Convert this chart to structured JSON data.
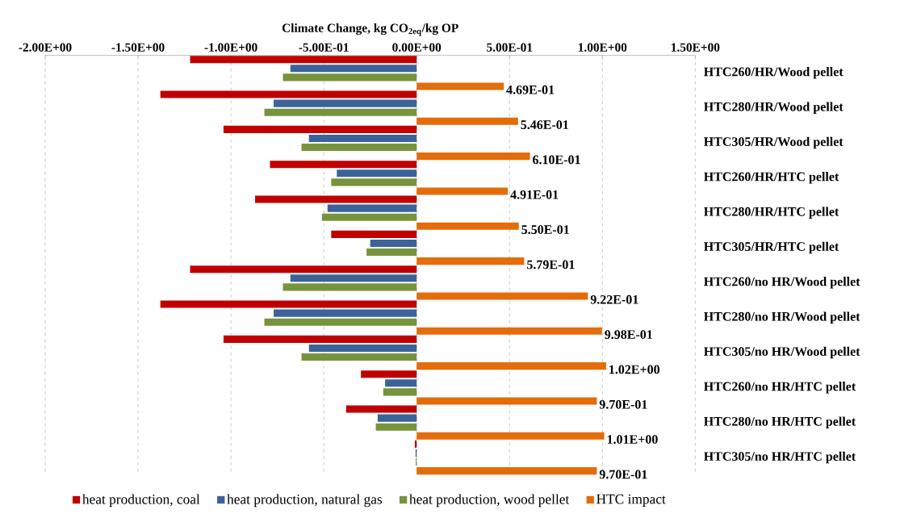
{
  "chart_data": {
    "type": "bar",
    "orientation": "horizontal",
    "xlabel": "Climate Change, kg CO$_{2eq}$/kg OP",
    "categories": [
      "HTC260/HR/Wood pellet",
      "HTC280/HR/Wood pellet",
      "HTC305/HR/Wood pellet",
      "HTC260/HR/HTC pellet",
      "HTC280/HR/HTC pellet",
      "HTC305/HR/HTC pellet",
      "HTC260/no HR/Wood pellet",
      "HTC280/no HR/Wood pellet",
      "HTC305/no HR/Wood pellet",
      "HTC260/no HR/HTC pellet",
      "HTC280/no HR/HTC pellet",
      "HTC305/no HR/HTC pellet"
    ],
    "series": [
      {
        "name": "heat production, coal",
        "color": "#c00000",
        "values": [
          -1.22,
          -1.38,
          -1.04,
          -0.79,
          -0.87,
          -0.46,
          -1.22,
          -1.38,
          -1.04,
          -0.3,
          -0.38,
          -0.01
        ]
      },
      {
        "name": "heat production, natural gas",
        "color": "#3a6399",
        "values": [
          -0.68,
          -0.77,
          -0.58,
          -0.43,
          -0.48,
          -0.25,
          -0.68,
          -0.77,
          -0.58,
          -0.17,
          -0.21,
          -0.006
        ]
      },
      {
        "name": "heat production, wood pellet",
        "color": "#77933c",
        "values": [
          -0.72,
          -0.82,
          -0.62,
          -0.46,
          -0.51,
          -0.27,
          -0.72,
          -0.82,
          -0.62,
          -0.18,
          -0.22,
          -0.005
        ]
      },
      {
        "name": "HTC impact",
        "color": "#e46c0a",
        "values": [
          0.469,
          0.546,
          0.61,
          0.491,
          0.55,
          0.579,
          0.922,
          0.998,
          1.02,
          0.97,
          1.01,
          0.97
        ],
        "value_labels": [
          "4.69E-01",
          "5.46E-01",
          "6.10E-01",
          "4.91E-01",
          "5.50E-01",
          "5.79E-01",
          "9.22E-01",
          "9.98E-01",
          "1.02E+00",
          "9.70E-01",
          "1.01E+00",
          "9.70E-01"
        ]
      }
    ],
    "xlim": [
      -2,
      1.5
    ],
    "xticks": [
      {
        "value": -2,
        "label": "-2.00E+00"
      },
      {
        "value": -1.5,
        "label": "-1.50E+00"
      },
      {
        "value": -1,
        "label": "-1.00E+00"
      },
      {
        "value": -0.5,
        "label": "-5.00E-01"
      },
      {
        "value": 0,
        "label": "0.00E+00"
      },
      {
        "value": 0.5,
        "label": "5.00E-01"
      },
      {
        "value": 1,
        "label": "1.00E+00"
      },
      {
        "value": 1.5,
        "label": "1.50E+00"
      }
    ],
    "grid": "x",
    "legend": "bottom"
  }
}
